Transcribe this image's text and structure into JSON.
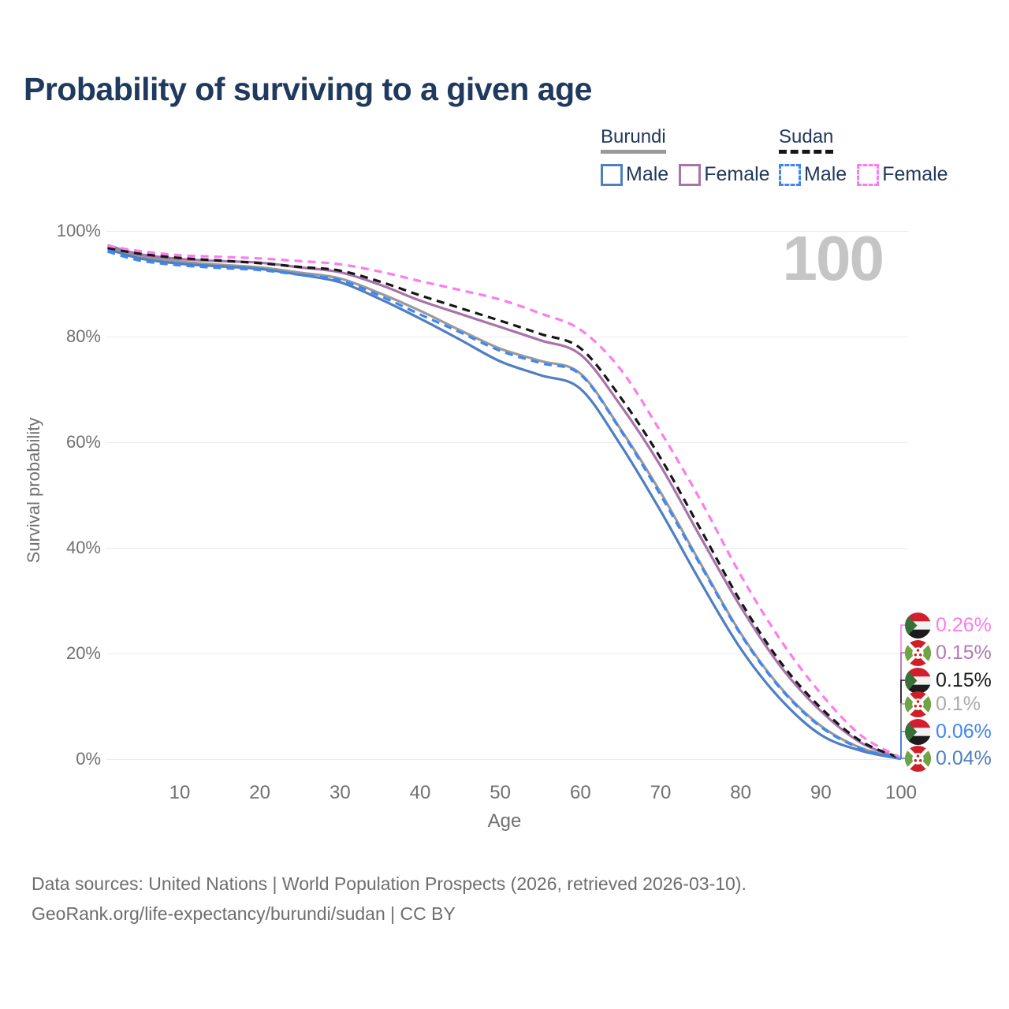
{
  "title": "Probability of surviving to a given age",
  "watermark": "100",
  "legend": {
    "groups": [
      {
        "name": "Burundi",
        "style": "solid",
        "items": [
          {
            "label": "Male"
          },
          {
            "label": "Female"
          }
        ]
      },
      {
        "name": "Sudan",
        "style": "dashed",
        "items": [
          {
            "label": "Male"
          },
          {
            "label": "Female"
          }
        ]
      }
    ]
  },
  "axes": {
    "y_title": "Survival probability",
    "y_ticks": [
      "100%",
      "80%",
      "60%",
      "40%",
      "20%",
      "0%"
    ],
    "x_title": "Age",
    "x_ticks": [
      "10",
      "20",
      "30",
      "40",
      "50",
      "60",
      "70",
      "80",
      "90",
      "100"
    ]
  },
  "colors": {
    "title_text": "#1f3a5e",
    "legend_text": "#22395c",
    "axis_text": "#707070",
    "grid": "#ebebeb",
    "watermark": "#c5c5c5",
    "burundi": "#9a9a9a",
    "burundi_male": "#4f7ec1",
    "burundi_female": "#a873ab",
    "sudan": "#161616",
    "sudan_male": "#3f86f5",
    "sudan_female": "#fb7cee"
  },
  "end_labels": [
    {
      "series": "Sudan Female",
      "flag": "sudan",
      "value": "0.26%",
      "text_color": "#fb7cee",
      "line_color": "#fb7cee"
    },
    {
      "series": "Burundi Female",
      "flag": "burundi",
      "value": "0.15%",
      "text_color": "#b279b2",
      "line_color": "#a873ab"
    },
    {
      "series": "Sudan",
      "flag": "sudan",
      "value": "0.15%",
      "text_color": "#1a1a1a",
      "line_color": "#161616"
    },
    {
      "series": "Burundi",
      "flag": "burundi",
      "value": "0.1%",
      "text_color": "#ababab",
      "line_color": "#9a9a9a"
    },
    {
      "series": "Sudan Male",
      "flag": "sudan",
      "value": "0.06%",
      "text_color": "#3f86f5",
      "line_color": "#3f86f5"
    },
    {
      "series": "Burundi Male",
      "flag": "burundi",
      "value": "0.04%",
      "text_color": "#4f7ec1",
      "line_color": "#4f7ec1"
    }
  ],
  "footer": {
    "line1": "Data sources: United Nations | World Population Prospects (2026, retrieved 2026-03-10).",
    "line2": "GeoRank.org/life-expectancy/burundi/sudan | CC BY"
  },
  "chart_data": {
    "type": "line",
    "title": "Probability of surviving to a given age",
    "xlabel": "Age",
    "ylabel": "Survival probability",
    "xlim": [
      1,
      100
    ],
    "ylim": [
      0,
      100
    ],
    "grid": "horizontal-only",
    "legend_position": "top-right",
    "x": [
      1,
      5,
      10,
      15,
      20,
      25,
      30,
      35,
      40,
      45,
      50,
      55,
      60,
      65,
      70,
      75,
      80,
      85,
      90,
      95,
      100
    ],
    "series": [
      {
        "name": "Burundi",
        "sex": "both",
        "dash": false,
        "color": "#9a9a9a",
        "values": [
          97.0,
          95.2,
          94.2,
          93.6,
          93.1,
          92.1,
          91.0,
          88.2,
          84.9,
          81.2,
          77.7,
          75.4,
          73.0,
          62.5,
          50.5,
          37.0,
          23.8,
          13.5,
          6.3,
          2.1,
          0.1
        ]
      },
      {
        "name": "Burundi Female",
        "sex": "female",
        "dash": false,
        "color": "#a873ab",
        "values": [
          97.3,
          95.6,
          94.7,
          94.3,
          94.0,
          93.1,
          92.2,
          89.8,
          86.8,
          84.3,
          81.8,
          79.3,
          76.6,
          67.0,
          55.5,
          42.0,
          28.8,
          17.5,
          9.1,
          3.1,
          0.15
        ]
      },
      {
        "name": "Burundi Male",
        "sex": "male",
        "dash": false,
        "color": "#4f7ec1",
        "values": [
          96.6,
          94.8,
          93.8,
          93.3,
          92.8,
          91.7,
          90.3,
          87.1,
          83.4,
          79.4,
          75.3,
          72.7,
          70.1,
          59.5,
          47.0,
          33.5,
          20.9,
          11.3,
          4.6,
          1.6,
          0.04
        ]
      },
      {
        "name": "Sudan",
        "sex": "both",
        "dash": true,
        "color": "#161616",
        "values": [
          96.8,
          95.7,
          94.9,
          94.4,
          93.9,
          93.2,
          92.5,
          90.4,
          87.8,
          85.4,
          83.0,
          80.5,
          77.8,
          68.5,
          57.0,
          43.5,
          29.8,
          18.3,
          9.7,
          3.4,
          0.15
        ]
      },
      {
        "name": "Sudan Male",
        "sex": "male",
        "dash": true,
        "color": "#3f86f5",
        "values": [
          96.1,
          94.4,
          93.5,
          93.0,
          92.6,
          91.7,
          90.7,
          87.7,
          84.2,
          80.8,
          77.3,
          75.0,
          72.8,
          62.3,
          50.0,
          36.7,
          23.6,
          13.3,
          6.1,
          2.0,
          0.06
        ]
      },
      {
        "name": "Sudan Female",
        "sex": "female",
        "dash": true,
        "color": "#fb7cee",
        "values": [
          97.2,
          96.2,
          95.4,
          95.1,
          94.8,
          94.3,
          93.7,
          92.3,
          90.5,
          88.8,
          87.0,
          84.4,
          81.3,
          73.8,
          62.0,
          49.0,
          34.8,
          22.5,
          12.4,
          4.5,
          0.26
        ]
      }
    ]
  }
}
